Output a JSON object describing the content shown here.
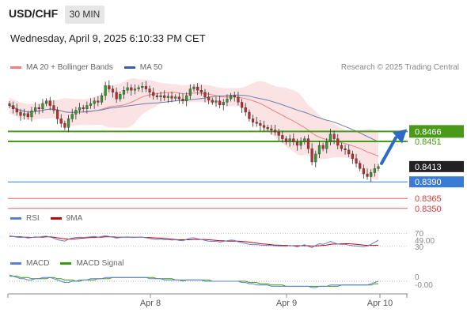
{
  "header": {
    "symbol": "USD/CHF",
    "timeframe": "30 MIN"
  },
  "datetime": "Wednesday, April 9, 2025 6:10:33 PM CET",
  "legend": {
    "main": [
      {
        "label": "MA 20 + Bollinger Bands",
        "color": "#f08080"
      },
      {
        "label": "MA 50",
        "color": "#3a5fa0"
      }
    ],
    "rsi": [
      {
        "label": "RSI",
        "color": "#5b7fd4"
      },
      {
        "label": "9MA",
        "color": "#cc0000"
      }
    ],
    "macd": [
      {
        "label": "MACD",
        "color": "#5b7fd4"
      },
      {
        "label": "MACD Signal",
        "color": "#3a9a10"
      }
    ]
  },
  "research": "Research © 2025 Trading Central",
  "chart_data": [
    {
      "type": "candlestick",
      "xlabels": [
        "Apr 8",
        "Apr 9",
        "Apr 10"
      ],
      "ylim": [
        0.8345,
        0.8545
      ],
      "close": [
        0.8505,
        0.85,
        0.8495,
        0.849,
        0.8493,
        0.8488,
        0.8497,
        0.8502,
        0.85,
        0.8508,
        0.8512,
        0.8505,
        0.8498,
        0.8485,
        0.8478,
        0.8472,
        0.8485,
        0.8492,
        0.8498,
        0.8502,
        0.85,
        0.8505,
        0.8508,
        0.8512,
        0.851,
        0.852,
        0.8535,
        0.853,
        0.8525,
        0.8515,
        0.8522,
        0.8528,
        0.8532,
        0.8528,
        0.853,
        0.8532,
        0.8534,
        0.853,
        0.8525,
        0.852,
        0.8518,
        0.852,
        0.8517,
        0.8519,
        0.8516,
        0.8518,
        0.8515,
        0.8512,
        0.852,
        0.853,
        0.8533,
        0.8528,
        0.8525,
        0.8518,
        0.8513,
        0.851,
        0.8512,
        0.8506,
        0.851,
        0.8515,
        0.852,
        0.8518,
        0.851,
        0.8502,
        0.8495,
        0.8485,
        0.848,
        0.8478,
        0.8475,
        0.8472,
        0.847,
        0.8468,
        0.8465,
        0.846,
        0.8455,
        0.845,
        0.8455,
        0.845,
        0.8445,
        0.845,
        0.8455,
        0.844,
        0.842,
        0.8432,
        0.8445,
        0.844,
        0.845,
        0.8462,
        0.8455,
        0.8445,
        0.844,
        0.8438,
        0.8432,
        0.8425,
        0.8418,
        0.841,
        0.8402,
        0.8398,
        0.8404,
        0.841,
        0.8413
      ],
      "price_levels": [
        {
          "value": "0.8466",
          "color": "#4a9a1a",
          "style": "solid"
        },
        {
          "value": "0.8451",
          "color": "#4a9a1a",
          "style": "solid"
        },
        {
          "value": "0.8413",
          "color": "#222222",
          "style": "current"
        },
        {
          "value": "0.8390",
          "color": "#3a7bd5",
          "style": "solid"
        },
        {
          "value": "0.8365",
          "color": "#e06060",
          "style": "solid"
        },
        {
          "value": "0.8350",
          "color": "#e06060",
          "style": "solid"
        }
      ]
    },
    {
      "type": "line",
      "name": "RSI",
      "ylim": [
        20,
        80
      ],
      "ticks": [
        "70",
        "30"
      ],
      "current": "49.00",
      "series": [
        {
          "name": "RSI",
          "values": [
            62,
            60,
            58,
            57,
            58,
            55,
            57,
            59,
            58,
            60,
            61,
            58,
            55,
            50,
            48,
            46,
            52,
            55,
            57,
            58,
            57,
            58,
            59,
            60,
            58,
            60,
            62,
            60,
            58,
            55,
            57,
            58,
            59,
            57,
            57,
            58,
            58,
            56,
            54,
            52,
            51,
            52,
            50,
            51,
            49,
            50,
            48,
            47,
            51,
            55,
            56,
            53,
            51,
            48,
            46,
            45,
            46,
            43,
            45,
            47,
            49,
            48,
            44,
            41,
            39,
            36,
            35,
            35,
            34,
            33,
            33,
            33,
            32,
            31,
            31,
            30,
            33,
            31,
            29,
            32,
            35,
            30,
            26,
            33,
            38,
            36,
            40,
            45,
            41,
            37,
            36,
            36,
            34,
            32,
            31,
            30,
            29,
            31,
            36,
            42,
            49
          ]
        },
        {
          "name": "9MA",
          "values": [
            60,
            60,
            59,
            59,
            58,
            58,
            57,
            58,
            58,
            58,
            59,
            59,
            58,
            56,
            54,
            53,
            52,
            52,
            53,
            54,
            55,
            56,
            57,
            57,
            58,
            58,
            59,
            59,
            59,
            58,
            58,
            58,
            58,
            58,
            58,
            58,
            58,
            57,
            57,
            56,
            55,
            55,
            54,
            53,
            52,
            51,
            50,
            50,
            50,
            50,
            51,
            51,
            51,
            51,
            50,
            49,
            48,
            47,
            47,
            46,
            46,
            46,
            46,
            45,
            44,
            43,
            41,
            40,
            38,
            37,
            36,
            35,
            34,
            34,
            33,
            33,
            32,
            32,
            32,
            32,
            32,
            32,
            31,
            31,
            32,
            33,
            34,
            36,
            37,
            37,
            38,
            38,
            38,
            37,
            36,
            35,
            34,
            33,
            33,
            33,
            34
          ]
        }
      ]
    },
    {
      "type": "line",
      "name": "MACD",
      "ticks": [
        "0"
      ],
      "current": "-0.00",
      "series": [
        {
          "name": "MACD",
          "values": [
            5,
            4,
            3,
            2,
            2,
            1,
            1,
            2,
            2,
            3,
            3,
            3,
            2,
            1,
            0,
            -1,
            -1,
            0,
            0,
            1,
            1,
            1,
            2,
            2,
            2,
            2,
            3,
            3,
            3,
            3,
            3,
            3,
            3,
            3,
            3,
            3,
            3,
            3,
            2,
            2,
            2,
            2,
            1,
            1,
            1,
            1,
            1,
            0,
            1,
            1,
            1,
            1,
            1,
            0,
            0,
            0,
            0,
            0,
            0,
            0,
            0,
            0,
            0,
            -1,
            -1,
            -2,
            -2,
            -3,
            -3,
            -3,
            -3,
            -4,
            -4,
            -4,
            -4,
            -4,
            -4,
            -4,
            -4,
            -4,
            -4,
            -4,
            -5,
            -5,
            -4,
            -4,
            -4,
            -3,
            -3,
            -3,
            -3,
            -3,
            -3,
            -3,
            -3,
            -3,
            -3,
            -3,
            -2,
            -1,
            0
          ]
        },
        {
          "name": "MACD Signal",
          "values": [
            4,
            4,
            4,
            3,
            3,
            3,
            2,
            2,
            2,
            2,
            2,
            3,
            3,
            2,
            2,
            1,
            1,
            1,
            0,
            0,
            1,
            1,
            1,
            1,
            2,
            2,
            2,
            2,
            3,
            3,
            3,
            3,
            3,
            3,
            3,
            3,
            3,
            3,
            3,
            3,
            2,
            2,
            2,
            2,
            2,
            1,
            1,
            1,
            1,
            1,
            1,
            1,
            1,
            1,
            1,
            0,
            0,
            0,
            0,
            0,
            0,
            0,
            0,
            0,
            0,
            -1,
            -1,
            -1,
            -2,
            -2,
            -2,
            -3,
            -3,
            -3,
            -3,
            -4,
            -4,
            -4,
            -4,
            -4,
            -4,
            -4,
            -4,
            -4,
            -4,
            -4,
            -4,
            -4,
            -4,
            -4,
            -3,
            -3,
            -3,
            -3,
            -3,
            -3,
            -3,
            -3,
            -3,
            -2,
            -2
          ]
        }
      ]
    }
  ]
}
